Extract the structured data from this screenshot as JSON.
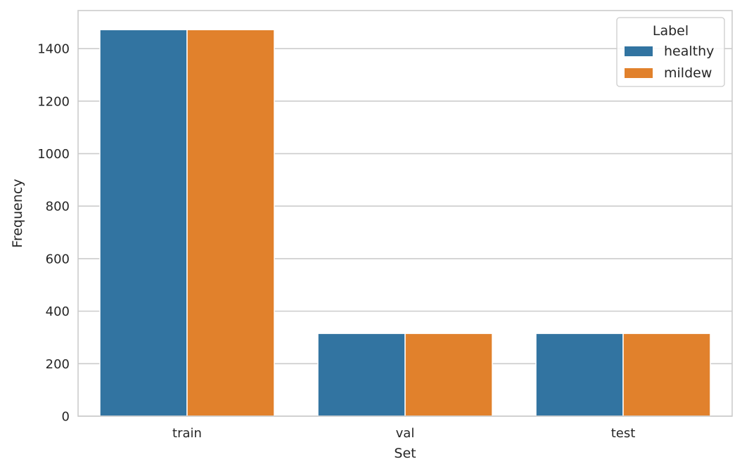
{
  "chart_data": {
    "type": "bar",
    "categories": [
      "train",
      "val",
      "test"
    ],
    "series": [
      {
        "name": "healthy",
        "values": [
          1472,
          315,
          315
        ]
      },
      {
        "name": "mildew",
        "values": [
          1472,
          315,
          315
        ]
      }
    ],
    "xlabel": "Set",
    "ylabel": "Frequency",
    "ylim": [
      0,
      1545
    ],
    "yticks": [
      0,
      200,
      400,
      600,
      800,
      1000,
      1200,
      1400
    ],
    "grid": true,
    "legend": {
      "title": "Label",
      "placement": "top-right"
    },
    "colors": {
      "healthy": "#3274a1",
      "mildew": "#e1812c"
    }
  }
}
